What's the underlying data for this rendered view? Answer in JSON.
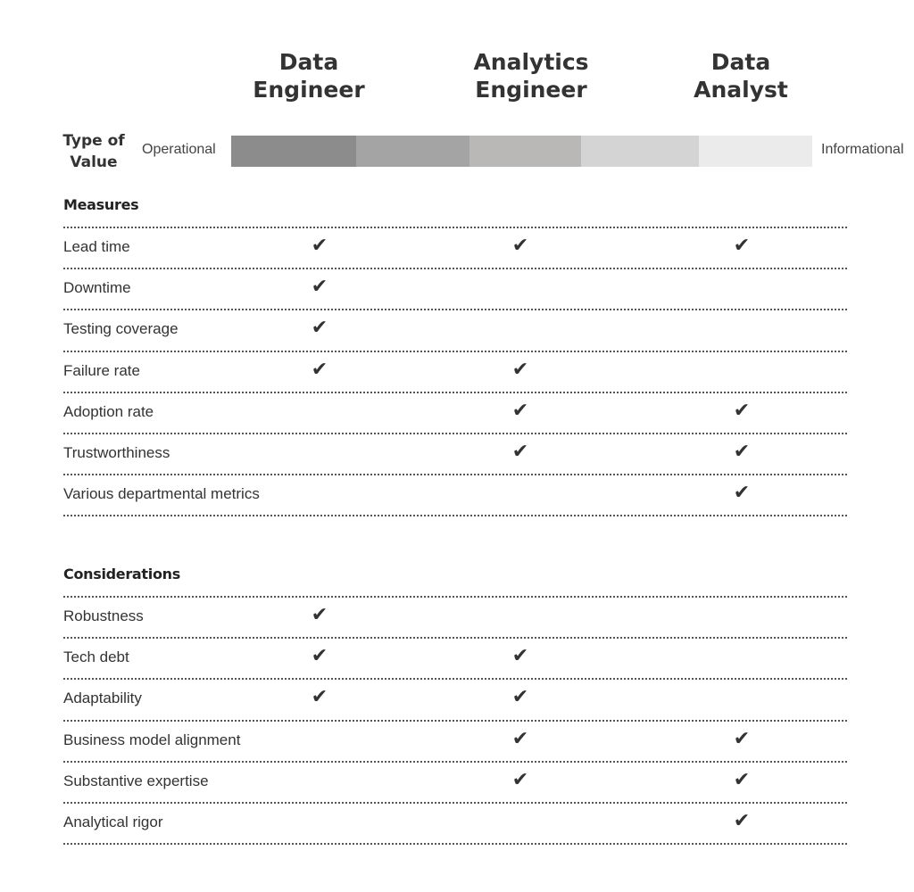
{
  "columns": [
    {
      "title": "Data\nEngineer"
    },
    {
      "title": "Analytics\nEngineer"
    },
    {
      "title": "Data\nAnalyst"
    }
  ],
  "type_of_value": {
    "label": "Type of\nValue",
    "start_label": "Operational",
    "end_label": "Informational",
    "scale_colors": [
      "#8c8c8c",
      "#a4a4a4",
      "#b9b8b7",
      "#d4d4d4",
      "#ebebeb"
    ]
  },
  "sections": [
    {
      "title": "Measures",
      "rows": [
        {
          "label": "Lead time",
          "checks": [
            true,
            true,
            true
          ]
        },
        {
          "label": "Downtime",
          "checks": [
            true,
            false,
            false
          ]
        },
        {
          "label": "Testing coverage",
          "checks": [
            true,
            false,
            false
          ]
        },
        {
          "label": "Failure rate",
          "checks": [
            true,
            true,
            false
          ]
        },
        {
          "label": "Adoption rate",
          "checks": [
            false,
            true,
            true
          ]
        },
        {
          "label": "Trustworthiness",
          "checks": [
            false,
            true,
            true
          ]
        },
        {
          "label": "Various departmental metrics",
          "checks": [
            false,
            false,
            true
          ]
        }
      ]
    },
    {
      "title": "Considerations",
      "rows": [
        {
          "label": "Robustness",
          "checks": [
            true,
            false,
            false
          ]
        },
        {
          "label": "Tech debt",
          "checks": [
            true,
            true,
            false
          ]
        },
        {
          "label": "Adaptability",
          "checks": [
            true,
            true,
            false
          ]
        },
        {
          "label": "Business model alignment",
          "checks": [
            false,
            true,
            true
          ]
        },
        {
          "label": "Substantive expertise",
          "checks": [
            false,
            true,
            true
          ]
        },
        {
          "label": "Analytical rigor",
          "checks": [
            false,
            false,
            true
          ]
        }
      ]
    }
  ],
  "check_icon": "checkmark-icon"
}
